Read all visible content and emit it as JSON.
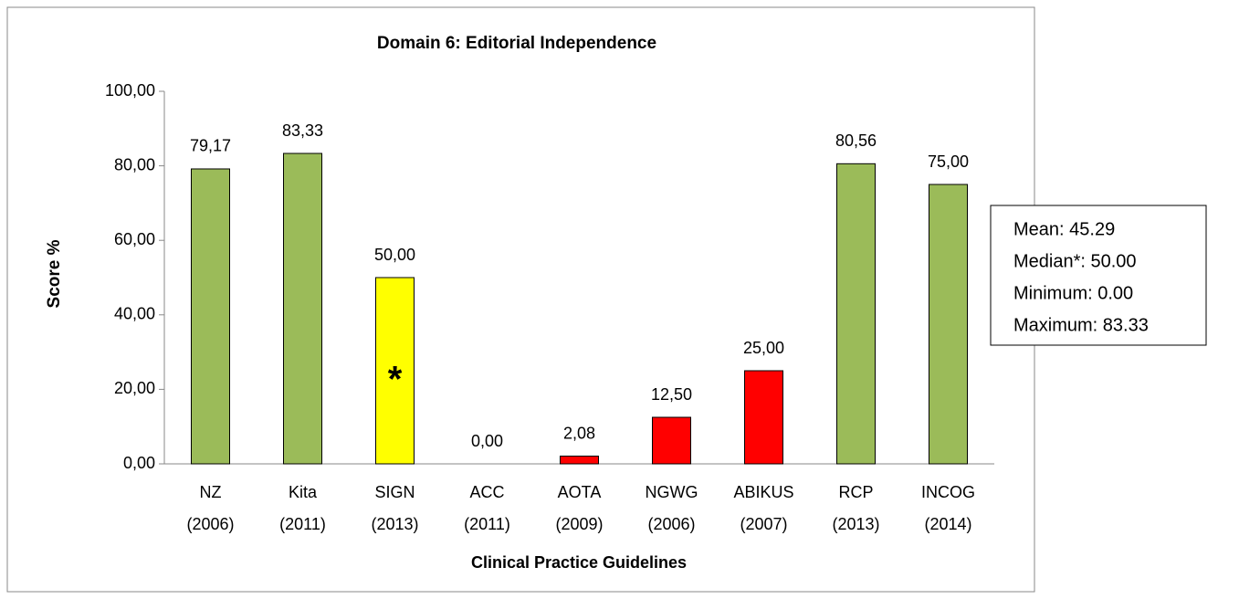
{
  "chart_data": {
    "type": "bar",
    "title": "Domain 6: Editorial Independence",
    "y_label": "Score %",
    "x_label": "Clinical Practice Guidelines",
    "categories": [
      "NZ (2006)",
      "Kita (2011)",
      "SIGN (2013)",
      "ACC (2011)",
      "AOTA (2009)",
      "NGWG (2006)",
      "ABIKUS (2007)",
      "RCP (2013)",
      "INCOG (2014)"
    ],
    "values": [
      79.17,
      83.33,
      50,
      0,
      2.08,
      12.5,
      25,
      80.56,
      75
    ],
    "value_labels": [
      "79,17",
      "83,33",
      "50,00",
      "0,00",
      "2,08",
      "12,50",
      "25,00",
      "80,56",
      "75,00"
    ],
    "colors": [
      "#9bbb59",
      "#9bbb59",
      "#ffff00",
      "#ff0000",
      "#ff0000",
      "#ff0000",
      "#ff0000",
      "#9bbb59",
      "#9bbb59"
    ],
    "ylim": [
      0,
      100
    ],
    "yticks": [
      {
        "value": 0,
        "label": "0,00"
      },
      {
        "value": 20,
        "label": "20,00"
      },
      {
        "value": 40,
        "label": "40,00"
      },
      {
        "value": 60,
        "label": "60,00"
      },
      {
        "value": 80,
        "label": "80,00"
      },
      {
        "value": 100,
        "label": "100,00"
      }
    ],
    "grid": false,
    "bar_annotation": {
      "category": 2,
      "text": "*"
    },
    "stats": [
      "Mean: 45.29",
      "Median*: 50.00",
      "Minimum: 0.00",
      "Maximum: 83.33"
    ]
  }
}
